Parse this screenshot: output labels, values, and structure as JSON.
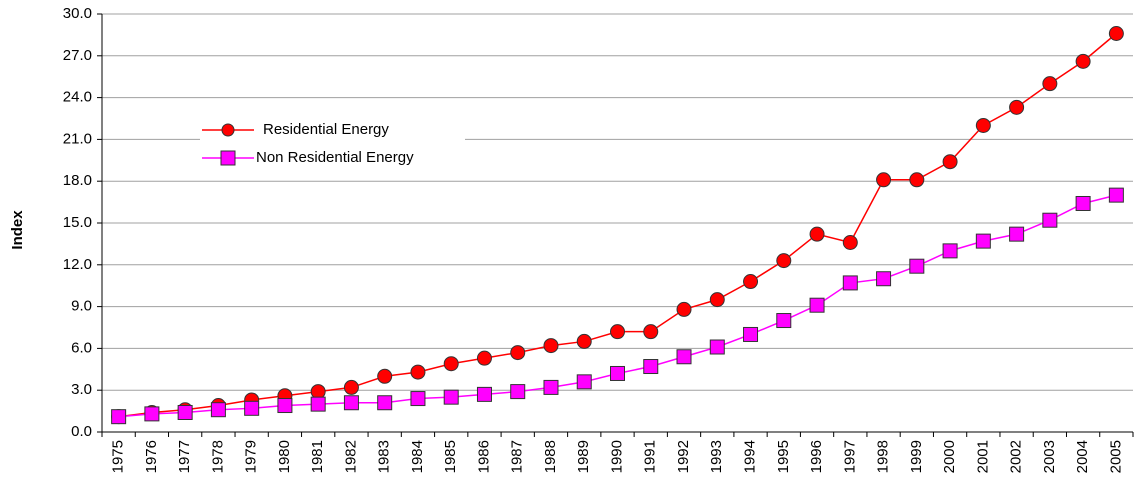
{
  "chart_data": {
    "type": "line",
    "y_label": "Index",
    "categories": [
      "1975",
      "1976",
      "1977",
      "1978",
      "1979",
      "1980",
      "1981",
      "1982",
      "1983",
      "1984",
      "1985",
      "1986",
      "1987",
      "1988",
      "1989",
      "1990",
      "1991",
      "1992",
      "1993",
      "1994",
      "1995",
      "1996",
      "1997",
      "1998",
      "1999",
      "2000",
      "2001",
      "2002",
      "2003",
      "2004",
      "2005"
    ],
    "series": [
      {
        "name": "Residential Energy",
        "color": "#ff0000",
        "marker": "circle",
        "values": [
          1.1,
          1.4,
          1.6,
          1.9,
          2.3,
          2.6,
          2.9,
          3.2,
          4.0,
          4.3,
          4.9,
          5.3,
          5.7,
          6.2,
          6.5,
          7.2,
          7.2,
          8.8,
          9.5,
          10.8,
          12.3,
          14.2,
          13.6,
          18.1,
          18.1,
          19.4,
          22.0,
          23.3,
          25.0,
          26.6,
          28.6
        ]
      },
      {
        "name": "Non Residential Energy",
        "color": "#ff00ff",
        "marker": "square",
        "values": [
          1.1,
          1.3,
          1.4,
          1.6,
          1.7,
          1.9,
          2.0,
          2.1,
          2.1,
          2.4,
          2.5,
          2.7,
          2.9,
          3.2,
          3.6,
          4.2,
          4.7,
          5.4,
          6.1,
          7.0,
          8.0,
          9.1,
          10.7,
          11.0,
          11.9,
          13.0,
          13.7,
          14.2,
          15.2,
          16.4,
          17.0
        ]
      }
    ],
    "ylim": [
      0,
      30
    ],
    "yticks": [
      {
        "value": 0,
        "label": "0.0"
      },
      {
        "value": 3,
        "label": "3.0"
      },
      {
        "value": 6,
        "label": "6.0"
      },
      {
        "value": 9,
        "label": "9.0"
      },
      {
        "value": 12,
        "label": "12.0"
      },
      {
        "value": 15,
        "label": "15.0"
      },
      {
        "value": 18,
        "label": "18.0"
      },
      {
        "value": 21,
        "label": "21.0"
      },
      {
        "value": 24,
        "label": "24.0"
      },
      {
        "value": 27,
        "label": "27.0"
      },
      {
        "value": 30,
        "label": "30.0"
      }
    ],
    "grid": true,
    "legend": "upper left"
  }
}
